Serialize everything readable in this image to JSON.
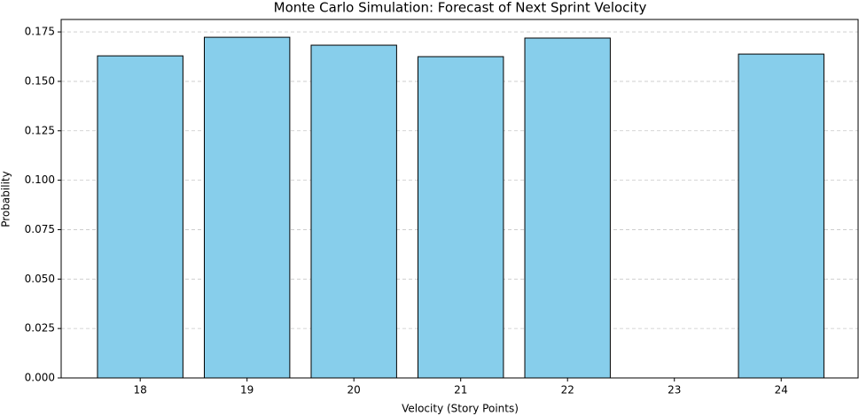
{
  "chart_data": {
    "type": "bar",
    "title": "Monte Carlo Simulation: Forecast of Next Sprint Velocity",
    "x_label": "Velocity (Story Points)",
    "y_label": "Probability",
    "x": [
      18,
      19,
      20,
      21,
      22,
      24
    ],
    "values": [
      0.1629,
      0.1723,
      0.1683,
      0.1625,
      0.1719,
      0.1638
    ],
    "color": "#87ceeb",
    "edgecolor": "#000000",
    "bar_width": 0.8,
    "xlim": [
      17.26,
      24.72
    ],
    "xticks": [
      18,
      19,
      20,
      21,
      22,
      23,
      24
    ],
    "ylim": [
      0,
      0.1813
    ],
    "yticks": [
      {
        "value": 0,
        "label": "0.000"
      },
      {
        "value": 0.025,
        "label": "0.025"
      },
      {
        "value": 0.05,
        "label": "0.050"
      },
      {
        "value": 0.075,
        "label": "0.075"
      },
      {
        "value": 0.1,
        "label": "0.100"
      },
      {
        "value": 0.125,
        "label": "0.125"
      },
      {
        "value": 0.15,
        "label": "0.150"
      },
      {
        "value": 0.175,
        "label": "0.175"
      }
    ],
    "grid": true
  }
}
